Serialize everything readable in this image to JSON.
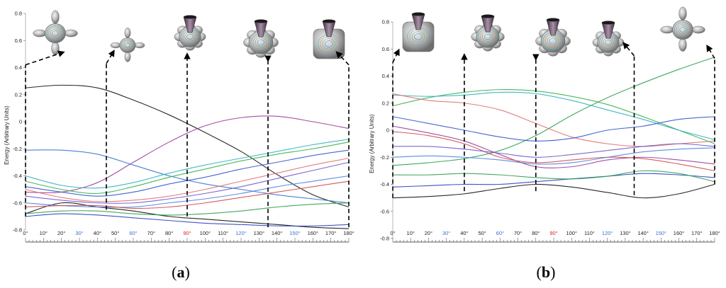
{
  "chart_data": [
    {
      "type": "line",
      "panel_label": "a",
      "ylabel": "Energy (Arbitrary Units)",
      "xlim": [
        0,
        180
      ],
      "ylim": [
        -0.8,
        0.8
      ],
      "yticks": [
        -0.8,
        -0.6,
        -0.4,
        -0.2,
        0,
        0.2,
        0.4,
        0.6,
        0.8
      ],
      "ytick_labels": [
        "-0.8",
        "-0.6",
        "-0.4",
        "-0.2",
        "0",
        "0.2",
        "0.4",
        "0.6",
        "0.8"
      ],
      "xticks": [
        0,
        10,
        20,
        30,
        40,
        50,
        60,
        70,
        80,
        90,
        100,
        110,
        120,
        130,
        140,
        150,
        160,
        170,
        180
      ],
      "xtick_labels": [
        "0°",
        "10°",
        "20°",
        "30°",
        "40°",
        "50°",
        "60°",
        "70°",
        "80°",
        "90°",
        "100°",
        "110°",
        "120°",
        "130°",
        "140°",
        "150°",
        "160°",
        "170°",
        "180°"
      ],
      "highlight_ticks": {
        "30": "#3b6fd6",
        "60": "#3b6fd6",
        "90": "#e02020",
        "120": "#3b6fd6",
        "150": "#3b6fd6"
      },
      "markers": [
        {
          "x": 0,
          "y_from": -0.7,
          "y_to": 0.42,
          "arrow_to": 25
        },
        {
          "x": 45,
          "y_from": -0.65,
          "y_to": 0.43,
          "arrow_to": 50
        },
        {
          "x": 90,
          "y_from": -0.7,
          "y_to": 0.45,
          "arrow_to": 90
        },
        {
          "x": 135,
          "y_from": -0.78,
          "y_to": 0.45,
          "arrow_to": 135
        },
        {
          "x": 180,
          "y_from": -0.78,
          "y_to": 0.42,
          "arrow_to": 172
        }
      ],
      "series": [
        {
          "color": "#111111",
          "x": [
            0,
            20,
            40,
            60,
            80,
            100,
            120,
            140,
            160,
            180
          ],
          "values": [
            0.25,
            0.27,
            0.25,
            0.16,
            0.05,
            -0.08,
            -0.22,
            -0.39,
            -0.54,
            -0.63
          ]
        },
        {
          "color": "#111111",
          "x": [
            0,
            20,
            40,
            60,
            80,
            100,
            120,
            140,
            160,
            180
          ],
          "values": [
            -0.68,
            -0.6,
            -0.63,
            -0.66,
            -0.7,
            -0.72,
            -0.74,
            -0.76,
            -0.78,
            -0.79
          ]
        },
        {
          "color": "#9a3a9a",
          "x": [
            0,
            20,
            40,
            60,
            80,
            100,
            120,
            140,
            160,
            180
          ],
          "values": [
            -0.52,
            -0.52,
            -0.45,
            -0.3,
            -0.15,
            -0.03,
            0.03,
            0.04,
            0.0,
            -0.05
          ]
        },
        {
          "color": "#3a6fd0",
          "x": [
            0,
            20,
            40,
            60,
            80,
            100,
            120,
            140,
            160,
            180
          ],
          "values": [
            -0.21,
            -0.21,
            -0.24,
            -0.32,
            -0.4,
            -0.46,
            -0.5,
            -0.54,
            -0.57,
            -0.6
          ]
        },
        {
          "color": "#2fb0c0",
          "x": [
            0,
            20,
            40,
            60,
            80,
            100,
            120,
            140,
            160,
            180
          ],
          "values": [
            -0.4,
            -0.47,
            -0.49,
            -0.45,
            -0.38,
            -0.32,
            -0.27,
            -0.22,
            -0.17,
            -0.13
          ]
        },
        {
          "color": "#34b04a",
          "x": [
            0,
            20,
            40,
            60,
            80,
            100,
            120,
            140,
            160,
            180
          ],
          "values": [
            -0.44,
            -0.5,
            -0.53,
            -0.48,
            -0.41,
            -0.35,
            -0.29,
            -0.24,
            -0.2,
            -0.15
          ]
        },
        {
          "color": "#3355cc",
          "x": [
            0,
            20,
            40,
            60,
            80,
            100,
            120,
            140,
            160,
            180
          ],
          "values": [
            -0.48,
            -0.52,
            -0.55,
            -0.52,
            -0.46,
            -0.41,
            -0.35,
            -0.3,
            -0.25,
            -0.21
          ]
        },
        {
          "color": "#e07070",
          "x": [
            0,
            20,
            40,
            60,
            80,
            100,
            120,
            140,
            160,
            180
          ],
          "values": [
            -0.5,
            -0.56,
            -0.59,
            -0.58,
            -0.55,
            -0.5,
            -0.44,
            -0.38,
            -0.32,
            -0.27
          ]
        },
        {
          "color": "#6a5acd",
          "x": [
            0,
            20,
            40,
            60,
            80,
            100,
            120,
            140,
            160,
            180
          ],
          "values": [
            -0.55,
            -0.58,
            -0.6,
            -0.6,
            -0.57,
            -0.53,
            -0.48,
            -0.42,
            -0.36,
            -0.3
          ]
        },
        {
          "color": "#4a7fe0",
          "x": [
            0,
            20,
            40,
            60,
            80,
            100,
            120,
            140,
            160,
            180
          ],
          "values": [
            -0.6,
            -0.62,
            -0.63,
            -0.63,
            -0.6,
            -0.57,
            -0.53,
            -0.48,
            -0.44,
            -0.4
          ]
        },
        {
          "color": "#d04a4a",
          "x": [
            0,
            20,
            40,
            60,
            80,
            100,
            120,
            140,
            160,
            180
          ],
          "values": [
            -0.63,
            -0.62,
            -0.62,
            -0.64,
            -0.63,
            -0.6,
            -0.56,
            -0.52,
            -0.48,
            -0.44
          ]
        },
        {
          "color": "#2e9e4e",
          "x": [
            0,
            20,
            40,
            60,
            80,
            100,
            120,
            140,
            160,
            180
          ],
          "values": [
            -0.68,
            -0.66,
            -0.66,
            -0.68,
            -0.69,
            -0.68,
            -0.66,
            -0.63,
            -0.61,
            -0.6
          ]
        },
        {
          "color": "#2840c0",
          "x": [
            0,
            20,
            40,
            60,
            80,
            100,
            120,
            140,
            160,
            180
          ],
          "values": [
            -0.7,
            -0.68,
            -0.69,
            -0.71,
            -0.73,
            -0.75,
            -0.76,
            -0.77,
            -0.77,
            -0.76
          ]
        }
      ]
    },
    {
      "type": "line",
      "panel_label": "b",
      "ylabel": "Energy (Arbitrary Units)",
      "xlim": [
        0,
        180
      ],
      "ylim": [
        -0.8,
        0.8
      ],
      "yticks": [
        -0.8,
        -0.6,
        -0.4,
        -0.2,
        0,
        0.2,
        0.4,
        0.6,
        0.8
      ],
      "ytick_labels": [
        "-0.8",
        "-0.6",
        "-0.4",
        "-0.2",
        "0",
        "0.2",
        "0.4",
        "0.6",
        "0.8"
      ],
      "xticks": [
        0,
        10,
        20,
        30,
        40,
        50,
        60,
        70,
        80,
        90,
        100,
        110,
        120,
        130,
        140,
        150,
        160,
        170,
        180
      ],
      "xtick_labels": [
        "0°",
        "10°",
        "20°",
        "30°",
        "40°",
        "50°",
        "60°",
        "70°",
        "80°",
        "90°",
        "100°",
        "110°",
        "120°",
        "130°",
        "140°",
        "150°",
        "160°",
        "170°",
        "180°"
      ],
      "highlight_ticks": {
        "30": "#3b6fd6",
        "60": "#3b6fd6",
        "90": "#e02020",
        "120": "#3b6fd6",
        "150": "#3b6fd6"
      },
      "markers": [
        {
          "x": 0,
          "y_from": -0.5,
          "y_to": 0.5,
          "arrow_to": 4
        },
        {
          "x": 40,
          "y_from": -0.45,
          "y_to": 0.55,
          "arrow_to": 40
        },
        {
          "x": 80,
          "y_from": -0.45,
          "y_to": 0.55,
          "arrow_to": 80
        },
        {
          "x": 135,
          "y_from": -0.48,
          "y_to": 0.55,
          "arrow_to": 128
        },
        {
          "x": 180,
          "y_from": -0.4,
          "y_to": 0.53,
          "arrow_to": 175
        }
      ],
      "series": [
        {
          "color": "#111111",
          "x": [
            0,
            20,
            40,
            60,
            80,
            100,
            120,
            140,
            160,
            180
          ],
          "values": [
            -0.5,
            -0.49,
            -0.47,
            -0.43,
            -0.4,
            -0.42,
            -0.46,
            -0.5,
            -0.47,
            -0.4
          ]
        },
        {
          "color": "#2e9e4e",
          "x": [
            0,
            20,
            40,
            60,
            80,
            100,
            120,
            140,
            160,
            180
          ],
          "values": [
            -0.26,
            -0.24,
            -0.21,
            -0.15,
            -0.04,
            0.11,
            0.24,
            0.35,
            0.45,
            0.54
          ]
        },
        {
          "color": "#34b04a",
          "x": [
            0,
            20,
            40,
            60,
            80,
            100,
            120,
            140,
            160,
            180
          ],
          "values": [
            0.18,
            0.24,
            0.28,
            0.3,
            0.29,
            0.25,
            0.19,
            0.1,
            0.0,
            -0.1
          ]
        },
        {
          "color": "#2fb0c0",
          "x": [
            0,
            20,
            40,
            60,
            80,
            100,
            120,
            140,
            160,
            180
          ],
          "values": [
            0.26,
            0.25,
            0.26,
            0.28,
            0.27,
            0.22,
            0.15,
            0.08,
            0.0,
            -0.07
          ]
        },
        {
          "color": "#e07070",
          "x": [
            0,
            20,
            40,
            60,
            80,
            100,
            120,
            140,
            160,
            180
          ],
          "values": [
            0.27,
            0.22,
            0.2,
            0.15,
            0.05,
            -0.05,
            -0.1,
            -0.12,
            -0.1,
            -0.08
          ]
        },
        {
          "color": "#3355cc",
          "x": [
            0,
            20,
            40,
            60,
            80,
            100,
            120,
            140,
            160,
            180
          ],
          "values": [
            0.1,
            0.05,
            0.0,
            -0.05,
            -0.08,
            -0.06,
            0.0,
            0.03,
            0.08,
            0.1
          ]
        },
        {
          "color": "#9a3a9a",
          "x": [
            0,
            20,
            40,
            60,
            80,
            100,
            120,
            140,
            160,
            180
          ],
          "values": [
            0.03,
            -0.02,
            -0.08,
            -0.18,
            -0.27,
            -0.27,
            -0.22,
            -0.2,
            -0.22,
            -0.25
          ]
        },
        {
          "color": "#d04a4a",
          "x": [
            0,
            20,
            40,
            60,
            80,
            100,
            120,
            140,
            160,
            180
          ],
          "values": [
            -0.01,
            -0.04,
            -0.1,
            -0.2,
            -0.24,
            -0.22,
            -0.2,
            -0.21,
            -0.25,
            -0.3
          ]
        },
        {
          "color": "#6a5acd",
          "x": [
            0,
            20,
            40,
            60,
            80,
            100,
            120,
            140,
            160,
            180
          ],
          "values": [
            -0.12,
            -0.12,
            -0.14,
            -0.17,
            -0.2,
            -0.18,
            -0.15,
            -0.12,
            -0.1,
            -0.12
          ]
        },
        {
          "color": "#4a7fe0",
          "x": [
            0,
            20,
            40,
            60,
            80,
            100,
            120,
            140,
            160,
            180
          ],
          "values": [
            -0.2,
            -0.19,
            -0.2,
            -0.22,
            -0.25,
            -0.24,
            -0.2,
            -0.16,
            -0.14,
            -0.13
          ]
        },
        {
          "color": "#2840c0",
          "x": [
            0,
            20,
            40,
            60,
            80,
            100,
            120,
            140,
            160,
            180
          ],
          "values": [
            -0.42,
            -0.41,
            -0.4,
            -0.4,
            -0.38,
            -0.36,
            -0.34,
            -0.32,
            -0.33,
            -0.35
          ]
        },
        {
          "color": "#2e9e4e",
          "x": [
            0,
            20,
            40,
            60,
            80,
            100,
            120,
            140,
            160,
            180
          ],
          "values": [
            -0.33,
            -0.33,
            -0.32,
            -0.33,
            -0.35,
            -0.36,
            -0.34,
            -0.3,
            -0.32,
            -0.38
          ]
        }
      ]
    }
  ]
}
